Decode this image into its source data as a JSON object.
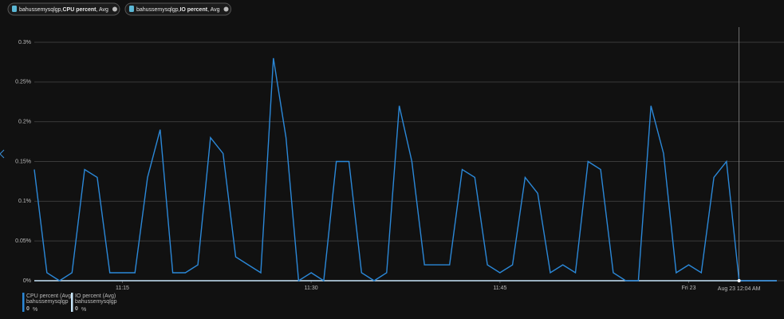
{
  "pills": [
    {
      "resource": "bahussemysqlgp,",
      "metric": "CPU percent",
      "agg": ", Avg"
    },
    {
      "resource": "bahussemysqlgp,",
      "metric": "IO percent",
      "agg": ", Avg"
    }
  ],
  "chart_data": {
    "type": "line",
    "x": [
      "11:08",
      "11:09",
      "11:10",
      "11:11",
      "11:12",
      "11:13",
      "11:14",
      "11:15",
      "11:16",
      "11:17",
      "11:18",
      "11:19",
      "11:20",
      "11:21",
      "11:22",
      "11:23",
      "11:24",
      "11:25",
      "11:26",
      "11:27",
      "11:28",
      "11:29",
      "11:30",
      "11:31",
      "11:32",
      "11:33",
      "11:34",
      "11:35",
      "11:36",
      "11:37",
      "11:38",
      "11:39",
      "11:40",
      "11:41",
      "11:42",
      "11:43",
      "11:44",
      "11:45",
      "11:46",
      "11:47",
      "11:48",
      "11:49",
      "11:50",
      "11:51",
      "11:52",
      "11:53",
      "11:54",
      "11:55",
      "11:56",
      "11:57",
      "11:58",
      "11:59",
      "12:00",
      "12:01",
      "12:02",
      "12:03",
      "12:04",
      "12:05",
      "12:06",
      "12:07"
    ],
    "series": [
      {
        "name": "IO percent (Avg)",
        "resource": "bahussemysqlgp",
        "color": "#c7e6fb",
        "values": [
          0,
          0,
          0,
          0,
          0,
          0,
          0,
          0,
          0,
          0,
          0,
          0,
          0,
          0,
          0,
          0,
          0,
          0,
          0,
          0,
          0,
          0,
          0,
          0,
          0,
          0,
          0,
          0,
          0,
          0,
          0,
          0,
          0,
          0,
          0,
          0,
          0,
          0,
          0,
          0,
          0,
          0,
          0,
          0,
          0,
          0,
          0,
          0,
          0,
          0,
          0,
          0,
          0,
          0,
          0,
          0,
          0,
          0,
          0,
          0
        ],
        "legend_value": "0"
      },
      {
        "name": "CPU percent (Avg)",
        "resource": "bahussemysqlgp",
        "color": "#2b88d8",
        "values": [
          0.14,
          0.01,
          0,
          0.01,
          0.14,
          0.13,
          0.01,
          0.01,
          0.01,
          0.13,
          0.19,
          0.01,
          0.01,
          0.02,
          0.18,
          0.16,
          0.03,
          0.02,
          0.01,
          0.28,
          0.18,
          0,
          0.01,
          0,
          0.15,
          0.15,
          0.01,
          0,
          0.01,
          0.22,
          0.15,
          0.02,
          0.02,
          0.02,
          0.14,
          0.13,
          0.02,
          0.01,
          0.02,
          0.13,
          0.11,
          0.01,
          0.02,
          0.01,
          0.15,
          0.14,
          0.01,
          0,
          0,
          0.22,
          0.16,
          0.01,
          0.02,
          0.01,
          0.13,
          0.15,
          0,
          0,
          0,
          0
        ],
        "legend_value": "0"
      }
    ],
    "legend_unit": "%",
    "ylim": [
      0,
      0.3
    ],
    "yticks": [
      {
        "value": 0,
        "label": "0%"
      },
      {
        "value": 0.05,
        "label": "0.05%"
      },
      {
        "value": 0.1,
        "label": "0.1%"
      },
      {
        "value": 0.15,
        "label": "0.15%"
      },
      {
        "value": 0.2,
        "label": "0.2%"
      },
      {
        "value": 0.25,
        "label": "0.25%"
      },
      {
        "value": 0.3,
        "label": "0.3%"
      }
    ],
    "xticks": [
      "11:15",
      "11:30",
      "11:45",
      {
        "value": "12:00",
        "label": "Fri 23"
      }
    ],
    "cursor": {
      "value": "12:04",
      "label": "Aug 23 12:04 AM"
    },
    "grid": true
  }
}
